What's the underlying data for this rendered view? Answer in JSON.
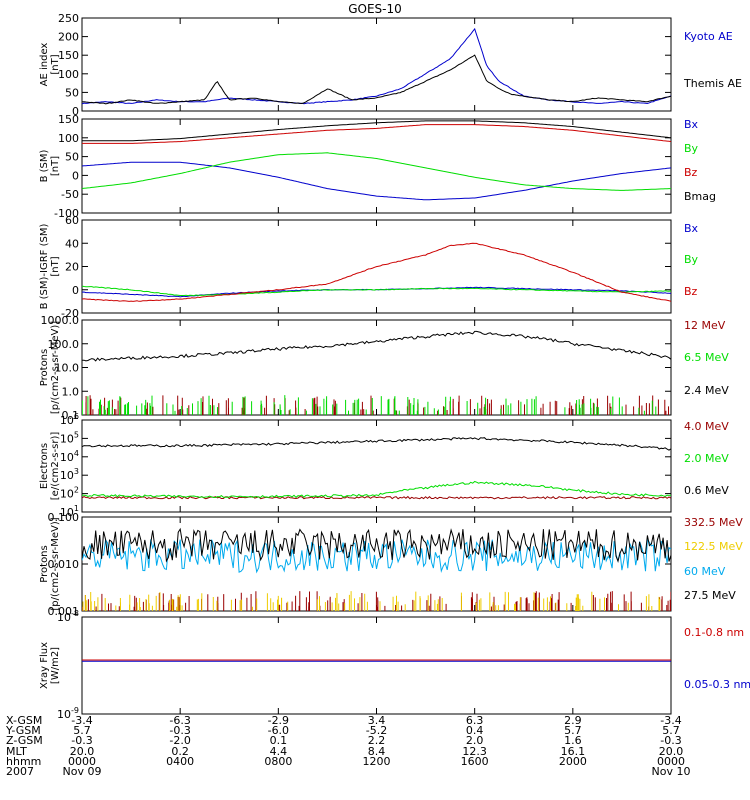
{
  "title": "GOES-10",
  "colors": {
    "black": "#000000",
    "blue": "#0000cc",
    "green": "#00dd00",
    "red": "#cc0000",
    "darkred": "#990000",
    "cyan": "#00aaee",
    "yellow": "#eecc00",
    "ltgreen": "#00cc00"
  },
  "chart_data": [
    {
      "type": "line",
      "id": "ae",
      "ylabel": [
        "AE index",
        "[nT]"
      ],
      "ylim": [
        0,
        250
      ],
      "yscale": "linear",
      "ticks": [
        0,
        50,
        100,
        150,
        200,
        250
      ],
      "tick_labels": [
        "0",
        "50",
        "100",
        "150",
        "200",
        "250"
      ],
      "series": [
        {
          "name": "Kyoto AE",
          "color": "blue",
          "x": [
            0,
            1,
            2,
            3,
            4,
            5,
            6,
            7,
            8,
            9,
            10,
            11,
            12,
            13,
            14,
            15,
            16,
            16.5,
            17,
            17.5,
            18,
            18.5,
            19,
            20,
            21,
            22,
            23,
            24
          ],
          "y": [
            20,
            25,
            20,
            30,
            25,
            25,
            35,
            30,
            25,
            20,
            25,
            30,
            40,
            60,
            100,
            140,
            220,
            120,
            80,
            60,
            40,
            35,
            30,
            25,
            20,
            25,
            20,
            40
          ]
        },
        {
          "name": "Themis AE",
          "color": "black",
          "x": [
            0,
            1,
            2,
            3,
            4,
            5,
            5.5,
            6,
            7,
            8,
            9,
            10,
            11,
            12,
            13,
            14,
            15,
            16,
            16.5,
            17,
            17.5,
            18,
            19,
            20,
            21,
            22,
            23,
            24
          ],
          "y": [
            25,
            20,
            30,
            20,
            25,
            30,
            80,
            30,
            35,
            25,
            20,
            60,
            30,
            35,
            50,
            80,
            110,
            150,
            80,
            60,
            45,
            40,
            30,
            25,
            35,
            30,
            25,
            40
          ]
        }
      ]
    },
    {
      "type": "line",
      "id": "bsm",
      "ylabel": [
        "B (SM)",
        "[nT]"
      ],
      "ylim": [
        -100,
        150
      ],
      "yscale": "linear",
      "ticks": [
        -100,
        -50,
        0,
        50,
        100,
        150
      ],
      "tick_labels": [
        "-100",
        "-50",
        "0",
        "50",
        "100",
        "150"
      ],
      "series": [
        {
          "name": "Bx",
          "color": "blue",
          "x": [
            0,
            2,
            4,
            6,
            8,
            10,
            12,
            14,
            16,
            18,
            20,
            22,
            24
          ],
          "y": [
            25,
            35,
            35,
            20,
            -5,
            -35,
            -55,
            -65,
            -60,
            -40,
            -15,
            5,
            20
          ]
        },
        {
          "name": "By",
          "color": "green",
          "x": [
            0,
            2,
            4,
            6,
            8,
            10,
            12,
            14,
            16,
            18,
            20,
            22,
            24
          ],
          "y": [
            -35,
            -20,
            5,
            35,
            55,
            60,
            45,
            20,
            -5,
            -25,
            -35,
            -40,
            -35
          ]
        },
        {
          "name": "Bz",
          "color": "red",
          "x": [
            0,
            2,
            4,
            6,
            8,
            10,
            12,
            14,
            16,
            18,
            20,
            22,
            24
          ],
          "y": [
            85,
            85,
            90,
            100,
            110,
            120,
            125,
            135,
            135,
            130,
            120,
            105,
            90
          ]
        },
        {
          "name": "Bmag",
          "color": "black",
          "x": [
            0,
            2,
            4,
            6,
            8,
            10,
            12,
            14,
            16,
            18,
            20,
            22,
            24
          ],
          "y": [
            92,
            92,
            98,
            110,
            122,
            132,
            140,
            145,
            145,
            140,
            130,
            115,
            100
          ]
        }
      ]
    },
    {
      "type": "line",
      "id": "bigrf",
      "ylabel": [
        "B (SM)-IGRF (SM)",
        "[nT]"
      ],
      "ylim": [
        -20,
        60
      ],
      "yscale": "linear",
      "ticks": [
        -20,
        0,
        20,
        40,
        60
      ],
      "tick_labels": [
        "-20",
        "0",
        "20",
        "40",
        "60"
      ],
      "series": [
        {
          "name": "Bx",
          "color": "blue",
          "x": [
            0,
            2,
            4,
            6,
            8,
            10,
            12,
            14,
            16,
            18,
            20,
            22,
            24
          ],
          "y": [
            -2,
            -4,
            -6,
            -3,
            -1,
            0,
            0,
            1,
            2,
            1,
            0,
            -1,
            -3
          ]
        },
        {
          "name": "By",
          "color": "green",
          "x": [
            0,
            2,
            4,
            6,
            8,
            10,
            12,
            14,
            16,
            18,
            20,
            22,
            24
          ],
          "y": [
            3,
            0,
            -5,
            -4,
            -2,
            0,
            0,
            1,
            1,
            0,
            -1,
            -2,
            -1
          ]
        },
        {
          "name": "Bz",
          "color": "red",
          "x": [
            0,
            2,
            4,
            6,
            8,
            10,
            12,
            14,
            15,
            16,
            18,
            20,
            22,
            24
          ],
          "y": [
            -8,
            -10,
            -8,
            -4,
            0,
            5,
            20,
            30,
            38,
            40,
            30,
            15,
            -2,
            -10
          ]
        }
      ]
    },
    {
      "type": "line",
      "id": "protons_hi",
      "ylabel": [
        "Protons",
        "[p/(cm2-s-sr-MeV)]"
      ],
      "ylim": [
        0.1,
        1000
      ],
      "yscale": "log",
      "ticks": [
        0.1,
        1,
        10,
        100,
        1000
      ],
      "tick_labels": [
        "0.1",
        "1.0",
        "10.0",
        "100.0",
        "1000.0"
      ],
      "series": [
        {
          "name": "12 MeV",
          "color": "darkred",
          "x": [],
          "y": []
        },
        {
          "name": "6.5 MeV",
          "color": "green",
          "x": [],
          "y": []
        },
        {
          "name": "2.4 MeV",
          "color": "black",
          "x": [
            0,
            2,
            4,
            6,
            8,
            10,
            12,
            14,
            16,
            18,
            20,
            22,
            24
          ],
          "y": [
            20,
            25,
            30,
            40,
            60,
            80,
            120,
            200,
            300,
            200,
            100,
            50,
            25
          ]
        }
      ]
    },
    {
      "type": "line",
      "id": "electrons",
      "ylabel": [
        "Electrons",
        "[e/(cm2-s-sr)]"
      ],
      "ylim": [
        10,
        1000000
      ],
      "yscale": "log",
      "ticks": [
        10,
        100,
        1000,
        10000,
        100000,
        1000000
      ],
      "tick_labels": [
        "10^1",
        "10^2",
        "10^3",
        "10^4",
        "10^5",
        "10^6"
      ],
      "series": [
        {
          "name": "4.0 MeV",
          "color": "darkred",
          "x": [
            0,
            4,
            8,
            12,
            16,
            20,
            24
          ],
          "y": [
            60,
            60,
            60,
            60,
            60,
            60,
            60
          ]
        },
        {
          "name": "2.0 MeV",
          "color": "green",
          "x": [
            0,
            4,
            8,
            12,
            14,
            16,
            18,
            20,
            22,
            24
          ],
          "y": [
            80,
            70,
            70,
            80,
            200,
            400,
            300,
            150,
            90,
            80
          ]
        },
        {
          "name": "0.6 MeV",
          "color": "black",
          "x": [
            0,
            4,
            8,
            12,
            16,
            20,
            24
          ],
          "y": [
            40000,
            40000,
            50000,
            70000,
            100000,
            60000,
            25000
          ]
        }
      ]
    },
    {
      "type": "line",
      "id": "protons_lo",
      "ylabel": [
        "Protons",
        "[p/(cm2-s-sr-MeV)]"
      ],
      "ylim": [
        0.001,
        0.1
      ],
      "yscale": "log",
      "ticks": [
        0.001,
        0.01,
        0.1
      ],
      "tick_labels": [
        "0.001",
        "0.010",
        "0.100"
      ],
      "series": [
        {
          "name": "332.5 MeV",
          "color": "darkred",
          "x": [],
          "y": []
        },
        {
          "name": "122.5 MeV",
          "color": "yellow",
          "x": [],
          "y": []
        },
        {
          "name": "60 MeV",
          "color": "cyan",
          "x": [
            0,
            24
          ],
          "y": [
            0.015,
            0.015
          ]
        },
        {
          "name": "27.5 MeV",
          "color": "black",
          "x": [
            0,
            24
          ],
          "y": [
            0.025,
            0.025
          ]
        }
      ]
    },
    {
      "type": "line",
      "id": "xray",
      "ylabel": [
        "Xray Flux",
        "[W/m2]"
      ],
      "ylim": [
        1e-09,
        1e-08
      ],
      "yscale": "log",
      "ticks": [
        1e-09,
        1e-08
      ],
      "tick_labels": [
        "10^-9",
        "10^-8"
      ],
      "series": [
        {
          "name": "0.1-0.8 nm",
          "color": "red",
          "x": [
            0,
            24
          ],
          "y": [
            3.6e-09,
            3.6e-09
          ]
        },
        {
          "name": "0.05-0.3 nm",
          "color": "blue",
          "x": [
            0,
            24
          ],
          "y": [
            3.5e-09,
            3.5e-09
          ]
        }
      ]
    }
  ],
  "x_axis": {
    "xlim": [
      0,
      24
    ],
    "tick_hours": [
      0,
      4,
      8,
      12,
      16,
      20,
      24
    ],
    "rows": [
      {
        "label": "X-GSM",
        "values": [
          "-3.4",
          "-6.3",
          "-2.9",
          "3.4",
          "6.3",
          "2.9",
          "-3.4"
        ]
      },
      {
        "label": "Y-GSM",
        "values": [
          "5.7",
          "-0.3",
          "-6.0",
          "-5.2",
          "0.4",
          "5.7",
          "5.7"
        ]
      },
      {
        "label": "Z-GSM",
        "values": [
          "-0.3",
          "-2.0",
          "0.1",
          "2.2",
          "2.0",
          "1.6",
          "-0.3"
        ]
      },
      {
        "label": "MLT",
        "values": [
          "20.0",
          "0.2",
          "4.4",
          "8.4",
          "12.3",
          "16.1",
          "20.0"
        ]
      },
      {
        "label": "hhmm",
        "values": [
          "0000",
          "0400",
          "0800",
          "1200",
          "1600",
          "2000",
          "0000"
        ]
      },
      {
        "label": "2007",
        "values": [
          "Nov 09",
          "",
          "",
          "",
          "",
          "",
          "Nov 10"
        ]
      }
    ]
  }
}
